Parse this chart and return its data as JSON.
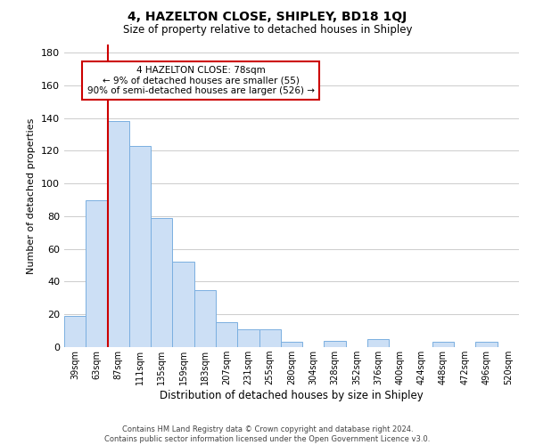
{
  "title": "4, HAZELTON CLOSE, SHIPLEY, BD18 1QJ",
  "subtitle": "Size of property relative to detached houses in Shipley",
  "xlabel": "Distribution of detached houses by size in Shipley",
  "ylabel": "Number of detached properties",
  "bar_labels": [
    "39sqm",
    "63sqm",
    "87sqm",
    "111sqm",
    "135sqm",
    "159sqm",
    "183sqm",
    "207sqm",
    "231sqm",
    "255sqm",
    "280sqm",
    "304sqm",
    "328sqm",
    "352sqm",
    "376sqm",
    "400sqm",
    "424sqm",
    "448sqm",
    "472sqm",
    "496sqm",
    "520sqm"
  ],
  "bar_heights": [
    19,
    90,
    138,
    123,
    79,
    52,
    35,
    15,
    11,
    11,
    3,
    0,
    4,
    0,
    5,
    0,
    0,
    3,
    0,
    3,
    0
  ],
  "bar_color": "#ccdff5",
  "bar_edge_color": "#7aafe0",
  "vline_x": 1.5,
  "vline_color": "#cc0000",
  "annotation_title": "4 HAZELTON CLOSE: 78sqm",
  "annotation_line1": "← 9% of detached houses are smaller (55)",
  "annotation_line2": "90% of semi-detached houses are larger (526) →",
  "ylim": [
    0,
    185
  ],
  "yticks": [
    0,
    20,
    40,
    60,
    80,
    100,
    120,
    140,
    160,
    180
  ],
  "footer_line1": "Contains HM Land Registry data © Crown copyright and database right 2024.",
  "footer_line2": "Contains public sector information licensed under the Open Government Licence v3.0.",
  "bg_color": "#ffffff",
  "grid_color": "#cccccc"
}
